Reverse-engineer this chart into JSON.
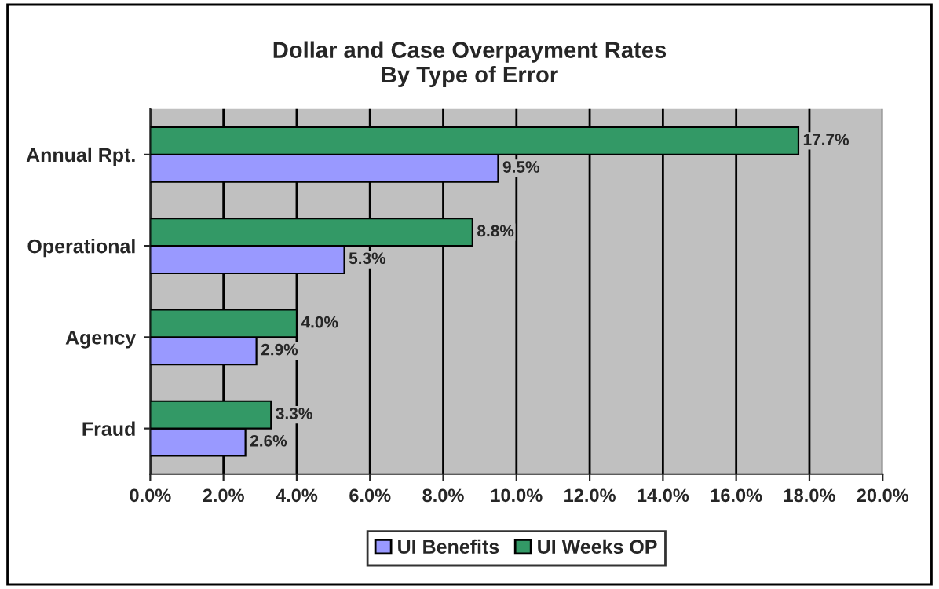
{
  "chart_data": {
    "type": "bar",
    "orientation": "horizontal",
    "title": "Dollar and Case Overpayment Rates\nBy Type of Error",
    "categories": [
      "Annual Rpt.",
      "Operational",
      "Agency",
      "Fraud"
    ],
    "series": [
      {
        "name": "UI Benefits",
        "color": "#9999ff",
        "values": [
          9.5,
          5.3,
          2.9,
          2.6
        ],
        "value_labels": [
          "9.5%",
          "5.3%",
          "2.9%",
          "2.6%"
        ]
      },
      {
        "name": "UI Weeks OP",
        "color": "#339966",
        "values": [
          17.7,
          8.8,
          4.0,
          3.3
        ],
        "value_labels": [
          "17.7%",
          "8.8%",
          "4.0%",
          "3.3%"
        ]
      }
    ],
    "xlim": [
      0,
      20
    ],
    "xticks": [
      {
        "value": 0,
        "label": "0.0%"
      },
      {
        "value": 2,
        "label": "2.0%"
      },
      {
        "value": 4,
        "label": "4.0%"
      },
      {
        "value": 6,
        "label": "6.0%"
      },
      {
        "value": 8,
        "label": "8.0%"
      },
      {
        "value": 10,
        "label": "10.0%"
      },
      {
        "value": 12,
        "label": "12.0%"
      },
      {
        "value": 14,
        "label": "14.0%"
      },
      {
        "value": 16,
        "label": "16.0%"
      },
      {
        "value": 18,
        "label": "18.0%"
      },
      {
        "value": 20,
        "label": "20.0%"
      }
    ],
    "grid": "x",
    "legend": "bottom"
  }
}
